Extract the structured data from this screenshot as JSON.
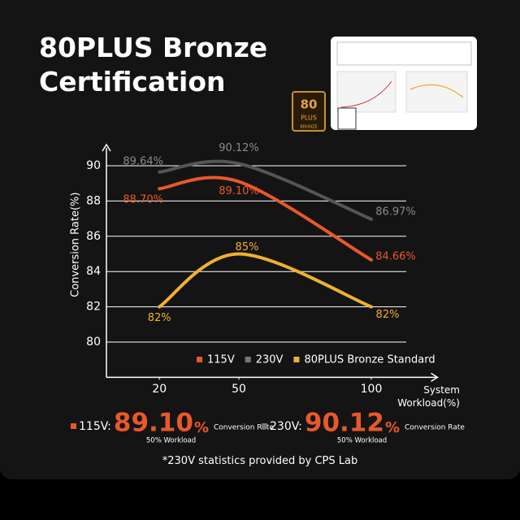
{
  "title": "80PLUS Bronze Certification",
  "badge": {
    "number": "80",
    "plus": "PLUS",
    "grade": "BRONZE"
  },
  "chart_data": {
    "type": "line",
    "ylabel": "Conversion Rate(%)",
    "xlabel": "System Workload(%)",
    "x": [
      20,
      50,
      100
    ],
    "xlim": [
      0,
      125
    ],
    "xticks": [
      20,
      50,
      100
    ],
    "ylim": [
      78,
      91.2
    ],
    "yticks": [
      80,
      82,
      84,
      86,
      88,
      90
    ],
    "grid": true,
    "smooth": true,
    "legend": "bottom-right",
    "series": [
      {
        "name": "115V",
        "color": "#e8582a",
        "values": [
          88.7,
          89.1,
          84.66
        ],
        "value_labels": [
          "88.70%",
          "89.10%",
          "84.66%"
        ]
      },
      {
        "name": "230V",
        "color": "#555555",
        "values": [
          89.64,
          90.12,
          86.97
        ],
        "value_labels": [
          "89.64%",
          "90.12%",
          "86.97%"
        ]
      },
      {
        "name": "80PLUS Bronze Standard",
        "color": "#f0b030",
        "values": [
          82,
          85,
          82
        ],
        "value_labels": [
          "82%",
          "85%",
          "82%"
        ]
      }
    ]
  },
  "highlights": [
    {
      "label": "115V:",
      "value": "89.10",
      "unit": "%",
      "caption": "Conversion Rate",
      "note": "50% Workload",
      "color": "#e8582a"
    },
    {
      "label": "230V:",
      "value": "90.12",
      "unit": "%",
      "caption": "Conversion Rate",
      "note": "50% Workload",
      "color": "#555555"
    }
  ],
  "footnote": "*230V statistics provided by CPS Lab"
}
